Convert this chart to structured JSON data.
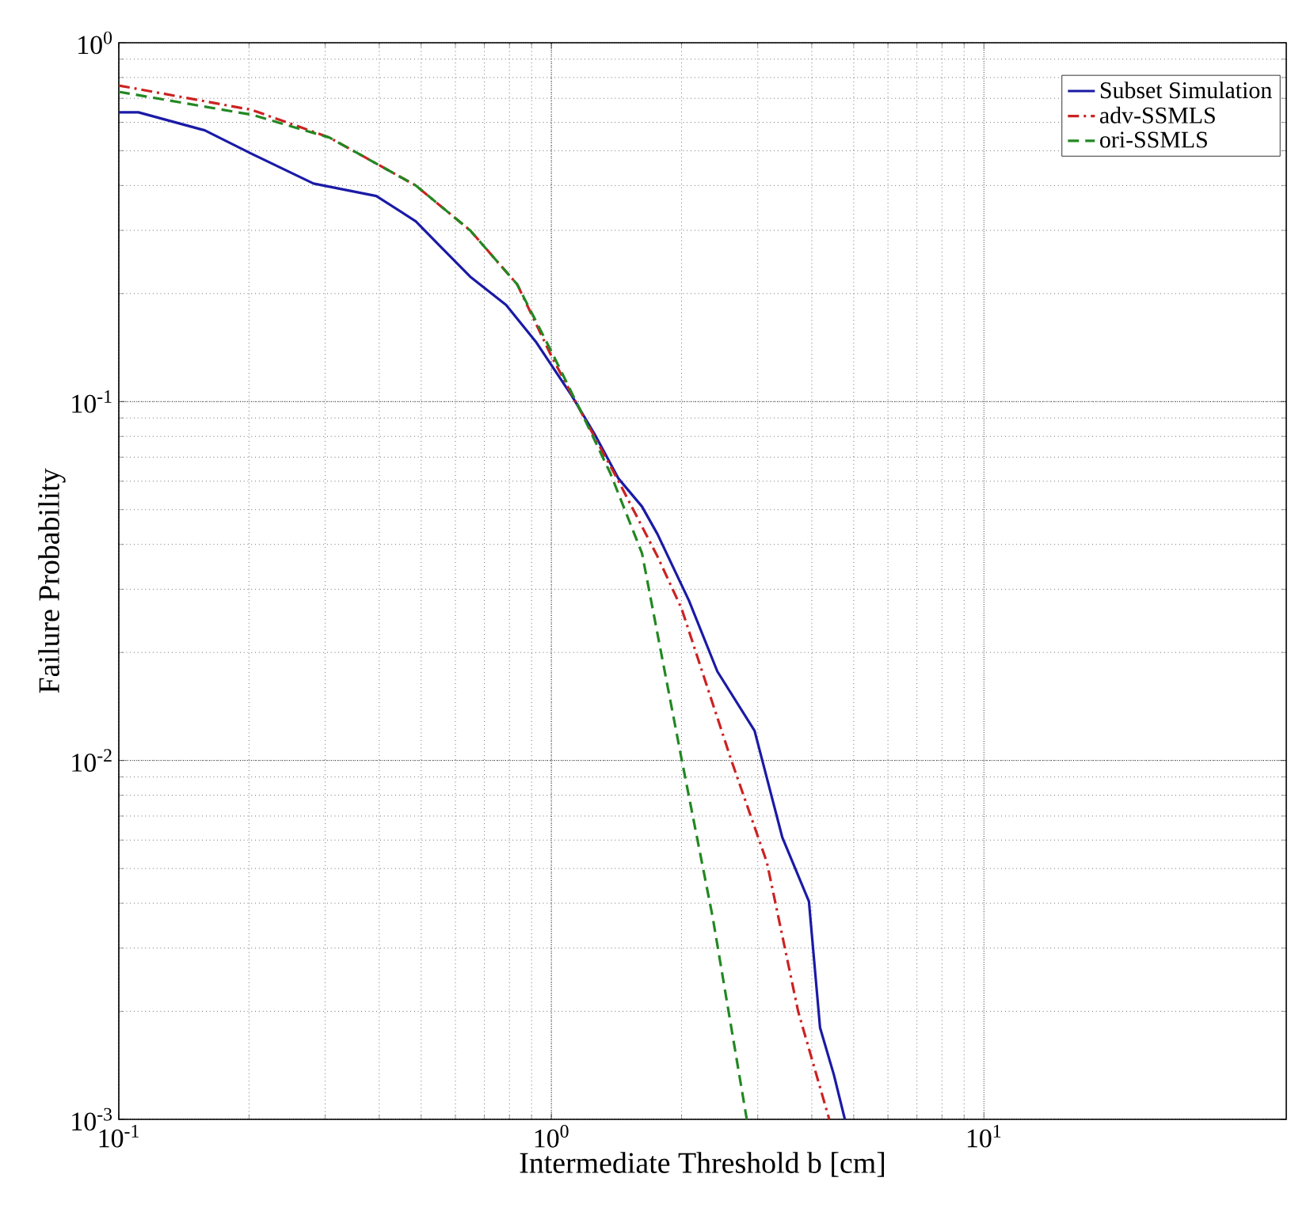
{
  "chart_data": {
    "type": "line",
    "xlabel": "Intermediate Threshold b [cm]",
    "ylabel": "Failure Probability",
    "log": "xy",
    "grid": true,
    "legend": "top right",
    "xlim": [
      0.1,
      50
    ],
    "ylim": [
      0.001,
      1
    ],
    "xticks": [
      {
        "value": 0.1,
        "label": "10$^{-1}$"
      },
      {
        "value": 1,
        "label": "10$^{0}$"
      },
      {
        "value": 10,
        "label": "10$^{1}$"
      }
    ],
    "yticks": [
      {
        "value": 0.001,
        "label": "10$^{-3}$"
      },
      {
        "value": 0.01,
        "label": "10$^{-2}$"
      },
      {
        "value": 0.1,
        "label": "10$^{-1}$"
      },
      {
        "value": 1,
        "label": "10$^{0}$"
      }
    ],
    "series": [
      {
        "name": "Subset Simulation",
        "color": "#1a1aa6",
        "line_style": "solid",
        "x": [
          0.1,
          0.111,
          0.158,
          0.203,
          0.282,
          0.394,
          0.486,
          0.55,
          0.649,
          0.786,
          0.92,
          1.114,
          1.26,
          1.43,
          1.62,
          1.76,
          2.08,
          2.42,
          2.95,
          3.42,
          3.94,
          4.18,
          4.5,
          4.77
        ],
        "values": [
          0.64,
          0.64,
          0.57,
          0.49,
          0.405,
          0.374,
          0.318,
          0.273,
          0.223,
          0.186,
          0.147,
          0.104,
          0.081,
          0.061,
          0.051,
          0.0427,
          0.0279,
          0.0177,
          0.0121,
          0.0061,
          0.00405,
          0.0018,
          0.00133,
          0.001
        ]
      },
      {
        "name": "adv-SSMLS",
        "color": "#cc2222",
        "line_style": "dashdot",
        "x": [
          0.1,
          0.203,
          0.307,
          0.486,
          0.649,
          0.834,
          1.0,
          1.18,
          1.43,
          1.76,
          2.0,
          2.6,
          3.15,
          3.72,
          4.39
        ],
        "values": [
          0.76,
          0.65,
          0.544,
          0.4,
          0.3,
          0.212,
          0.134,
          0.092,
          0.06,
          0.037,
          0.0265,
          0.0101,
          0.0052,
          0.002,
          0.001
        ]
      },
      {
        "name": "ori-SSMLS",
        "color": "#228822",
        "line_style": "dashed",
        "x": [
          0.1,
          0.203,
          0.307,
          0.486,
          0.649,
          0.834,
          1.0,
          1.18,
          1.37,
          1.62,
          2.0,
          2.36,
          2.83
        ],
        "values": [
          0.73,
          0.63,
          0.544,
          0.4,
          0.3,
          0.212,
          0.138,
          0.092,
          0.063,
          0.0378,
          0.0101,
          0.00366,
          0.001
        ]
      }
    ]
  }
}
